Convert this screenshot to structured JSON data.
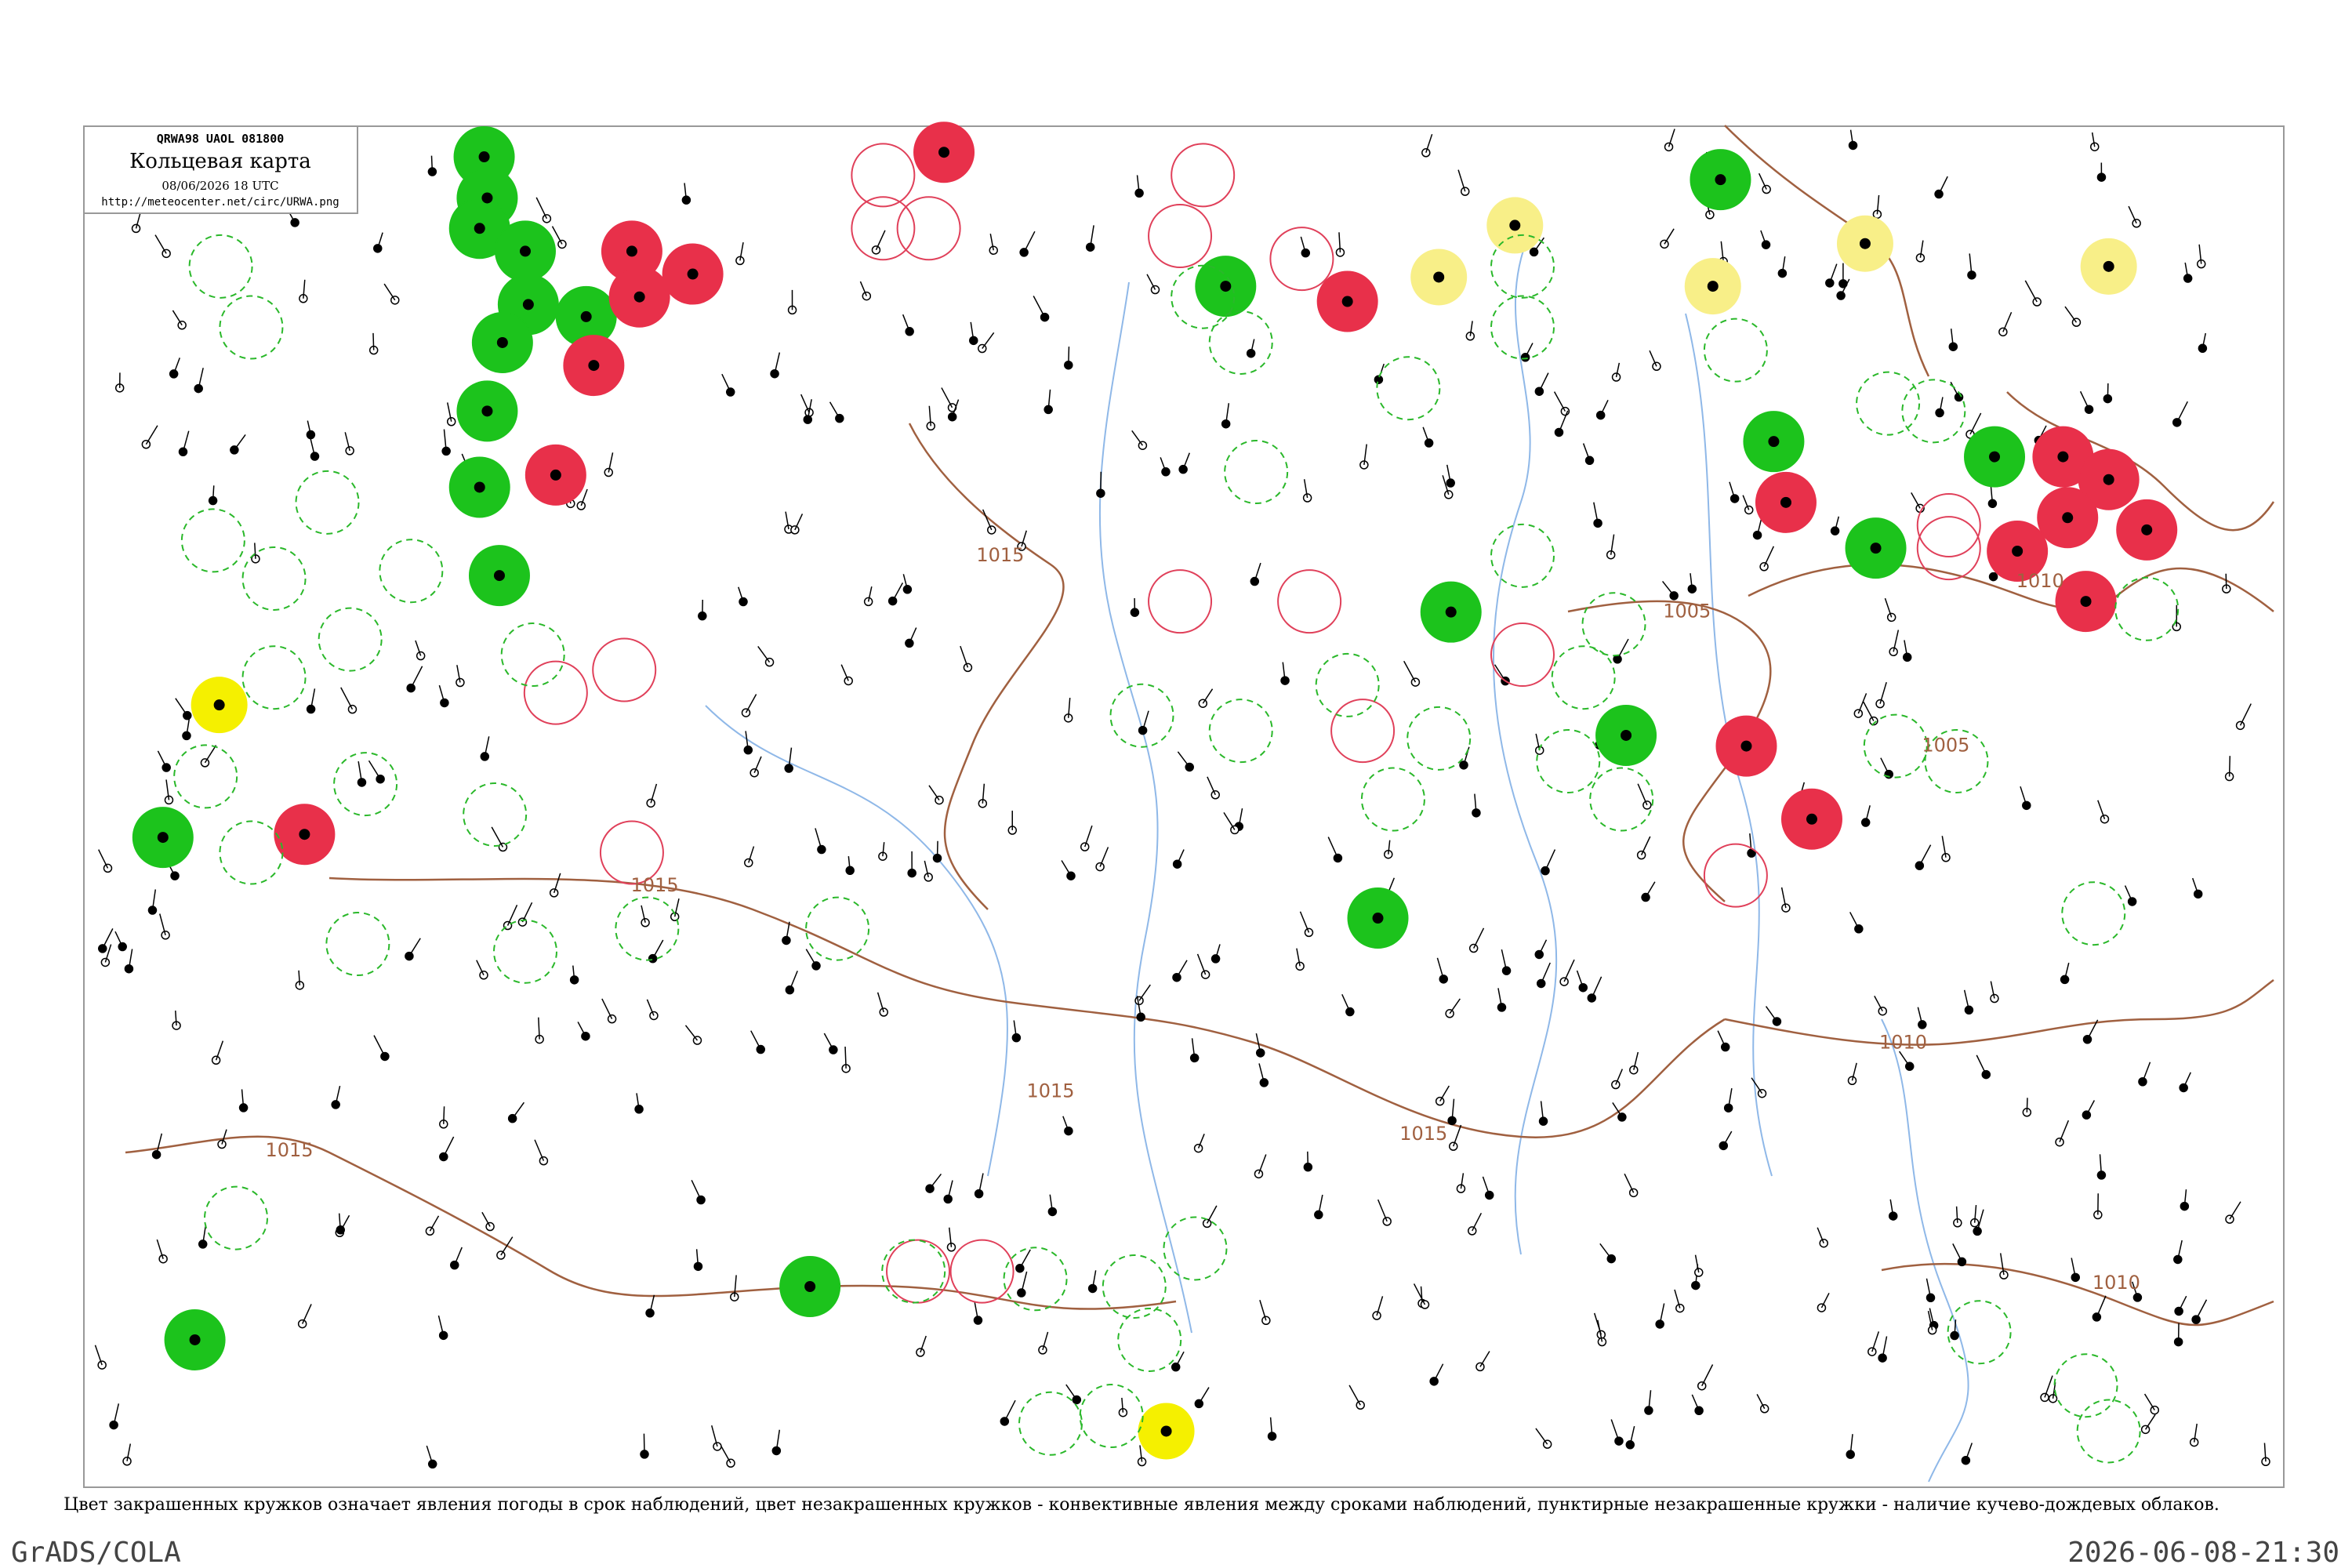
{
  "header": {
    "code": "QRWA98  UAOL  081800",
    "title": "Кольцевая карта",
    "date": "08/06/2026 18 UTC",
    "url": "http://meteocenter.net/circ/URWA.png"
  },
  "isobars": [
    {
      "label": "1015"
    },
    {
      "label": "1015"
    },
    {
      "label": "1015"
    },
    {
      "label": "1015"
    },
    {
      "label": "1015"
    },
    {
      "label": "1005"
    },
    {
      "label": "1005"
    },
    {
      "label": "1010"
    },
    {
      "label": "1010"
    },
    {
      "label": "1010"
    }
  ],
  "caption": "Цвет закрашенных кружков означает явления погоды в срок наблюдений, цвет незакрашенных кружков - конвективные явления между сроками наблюдений, пунктирные незакрашенные кружки - наличие кучево-дождевых облаков.",
  "footer": {
    "software": "GrADS/COLA",
    "timestamp": "2026-06-08-21:30"
  }
}
